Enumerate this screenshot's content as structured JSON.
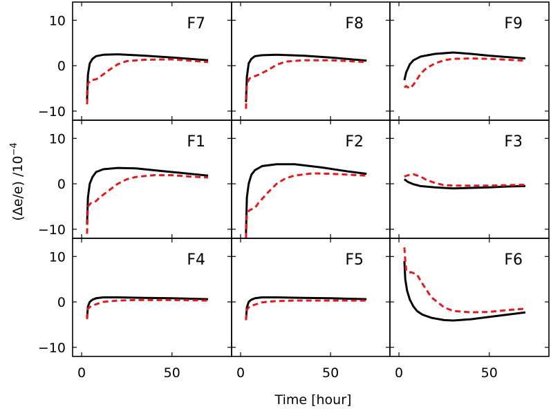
{
  "chart_data": {
    "type": "line",
    "xlabel": "Time [hour]",
    "ylabel": "(Δe/e) /10⁻⁴",
    "ylabel_main": "(Δe/e) /10",
    "ylabel_exp": "−4",
    "xlim": [
      -5,
      83
    ],
    "ylim": [
      -12,
      14
    ],
    "xticks": [
      0,
      50
    ],
    "xtick_labels": [
      "0",
      "50"
    ],
    "yticks": [
      10,
      0,
      -10
    ],
    "ytick_labels": [
      "10",
      "0",
      "−10"
    ],
    "legend": "none",
    "grid": false,
    "layout": {
      "rows": 3,
      "cols": 3
    },
    "series_styles": [
      {
        "name": "solid",
        "color": "#000000",
        "dash": "none"
      },
      {
        "name": "dashed",
        "color": "#e31a1c",
        "dash": "8,5"
      }
    ],
    "panels": [
      {
        "label": "F7",
        "solid": {
          "x": [
            3,
            3.5,
            4.5,
            6,
            8,
            12,
            20,
            35,
            50,
            70
          ],
          "y": [
            -7.5,
            -2,
            0.5,
            1.5,
            2.1,
            2.4,
            2.5,
            2.2,
            1.8,
            1.2
          ]
        },
        "dashed": {
          "x": [
            3,
            3.5,
            5,
            8,
            10,
            15,
            20,
            25,
            35,
            50,
            70
          ],
          "y": [
            -8.5,
            -4,
            -3.2,
            -3,
            -2.5,
            -1,
            0.3,
            1,
            1.3,
            1.4,
            0.8
          ]
        }
      },
      {
        "label": "F8",
        "solid": {
          "x": [
            3,
            3.5,
            4.5,
            6,
            8,
            12,
            20,
            35,
            50,
            70
          ],
          "y": [
            -8,
            -2.5,
            0.5,
            1.5,
            2.1,
            2.3,
            2.4,
            2.2,
            1.8,
            1.1
          ]
        },
        "dashed": {
          "x": [
            3,
            3.5,
            5,
            8,
            10,
            15,
            20,
            25,
            35,
            50,
            70
          ],
          "y": [
            -9.5,
            -4,
            -2.8,
            -2.3,
            -2,
            -1,
            0.2,
            0.9,
            1.2,
            1.2,
            0.8
          ]
        }
      },
      {
        "label": "F9",
        "solid": {
          "x": [
            3,
            4,
            6,
            8,
            12,
            20,
            30,
            40,
            50,
            70
          ],
          "y": [
            -3.2,
            -1.5,
            0.3,
            1.2,
            2,
            2.6,
            2.9,
            2.6,
            2.2,
            1.6
          ]
        },
        "dashed": {
          "x": [
            3,
            4,
            6,
            8,
            10,
            12,
            15,
            20,
            25,
            30,
            40,
            50,
            70
          ],
          "y": [
            -4.8,
            -4.5,
            -5,
            -4.2,
            -3,
            -1.8,
            -0.6,
            0.5,
            1.2,
            1.5,
            1.6,
            1.5,
            1.1
          ]
        }
      },
      {
        "label": "F1",
        "solid": {
          "x": [
            3,
            3.5,
            4.5,
            6,
            8,
            12,
            20,
            30,
            45,
            60,
            70
          ],
          "y": [
            -9,
            -3,
            0,
            1.5,
            2.6,
            3.2,
            3.5,
            3.4,
            2.8,
            2.2,
            1.8
          ]
        },
        "dashed": {
          "x": [
            3,
            3.5,
            5,
            8,
            10,
            15,
            20,
            25,
            30,
            40,
            50,
            60,
            70
          ],
          "y": [
            -11,
            -5,
            -4.3,
            -3.8,
            -3,
            -1.5,
            0,
            1,
            1.5,
            1.9,
            1.9,
            1.6,
            1.4
          ]
        }
      },
      {
        "label": "F2",
        "solid": {
          "x": [
            3,
            3.5,
            4.5,
            6,
            8,
            12,
            20,
            30,
            45,
            60,
            70
          ],
          "y": [
            -11,
            -3,
            0,
            2,
            3,
            3.9,
            4.3,
            4.3,
            3.6,
            2.7,
            2.2
          ]
        },
        "dashed": {
          "x": [
            3,
            3.5,
            5,
            8,
            10,
            15,
            20,
            25,
            30,
            40,
            50,
            60,
            70
          ],
          "y": [
            -12,
            -6.5,
            -5.8,
            -5.3,
            -4.2,
            -2,
            0,
            1.2,
            1.8,
            2.3,
            2.2,
            2,
            1.8
          ]
        }
      },
      {
        "label": "F3",
        "solid": {
          "x": [
            3,
            5,
            8,
            12,
            20,
            30,
            40,
            50,
            60,
            70
          ],
          "y": [
            1,
            0.4,
            -0.1,
            -0.5,
            -0.8,
            -1,
            -0.9,
            -0.8,
            -0.6,
            -0.5
          ]
        },
        "dashed": {
          "x": [
            3,
            5,
            8,
            12,
            15,
            20,
            25,
            30,
            40,
            50,
            60,
            70
          ],
          "y": [
            1.6,
            1.9,
            2.1,
            1.6,
            0.9,
            0.2,
            -0.3,
            -0.4,
            -0.4,
            -0.4,
            -0.3,
            -0.2
          ]
        }
      },
      {
        "label": "F4",
        "solid": {
          "x": [
            3,
            3.5,
            4.5,
            6,
            8,
            12,
            20,
            35,
            50,
            70
          ],
          "y": [
            -3.5,
            -1,
            0,
            0.5,
            0.8,
            1,
            1,
            0.9,
            0.8,
            0.6
          ]
        },
        "dashed": {
          "x": [
            3,
            3.5,
            5,
            8,
            12,
            20,
            30,
            50,
            70
          ],
          "y": [
            -3.8,
            -1.5,
            -1,
            -0.5,
            0,
            0.3,
            0.4,
            0.4,
            0.3
          ]
        }
      },
      {
        "label": "F5",
        "solid": {
          "x": [
            3,
            3.5,
            4.5,
            6,
            8,
            12,
            20,
            35,
            50,
            70
          ],
          "y": [
            -4,
            -1.2,
            0,
            0.5,
            0.8,
            1,
            1,
            0.9,
            0.8,
            0.6
          ]
        },
        "dashed": {
          "x": [
            3,
            3.5,
            5,
            8,
            12,
            20,
            30,
            50,
            70
          ],
          "y": [
            -4,
            -1.7,
            -1,
            -0.6,
            -0.1,
            0.2,
            0.3,
            0.3,
            0.3
          ]
        }
      },
      {
        "label": "F6",
        "solid": {
          "x": [
            3,
            3.5,
            4.5,
            6,
            8,
            10,
            13,
            18,
            25,
            30,
            40,
            50,
            60,
            70
          ],
          "y": [
            9,
            5,
            2.5,
            0.5,
            -1,
            -2,
            -2.8,
            -3.5,
            -4,
            -4.1,
            -3.8,
            -3.3,
            -2.8,
            -2.3
          ]
        },
        "dashed": {
          "x": [
            3,
            3.5,
            4,
            5,
            7,
            10,
            13,
            18,
            25,
            30,
            40,
            50,
            60,
            70
          ],
          "y": [
            12,
            9,
            7,
            6.5,
            6.5,
            6,
            4,
            1,
            -1.2,
            -2,
            -2.3,
            -2.2,
            -1.8,
            -1.5
          ]
        }
      }
    ]
  }
}
